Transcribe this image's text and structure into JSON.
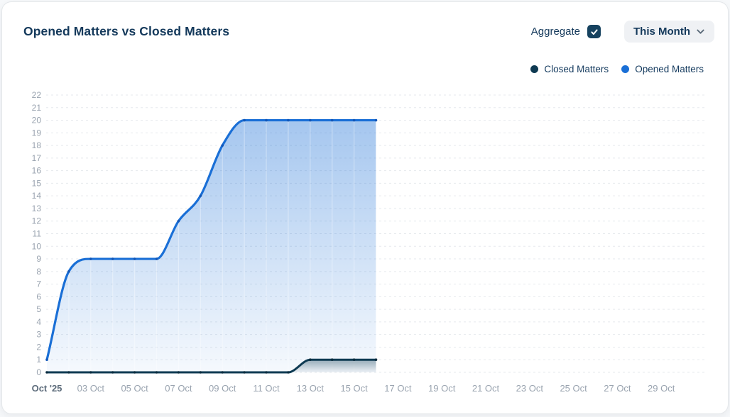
{
  "header": {
    "title": "Opened Matters vs Closed Matters",
    "aggregate_label": "Aggregate",
    "aggregate_checked": true,
    "period_selector": "This Month"
  },
  "legend": [
    {
      "label": "Closed Matters",
      "color": "#0E3A52"
    },
    {
      "label": "Opened Matters",
      "color": "#1A6FD6"
    }
  ],
  "colors": {
    "title_text": "#14395B",
    "opened_line": "#1A6FD6",
    "closed_line": "#0E3A52",
    "axis_tick_text": "#99A3AF",
    "first_x_tick_text": "#5D6C7B",
    "gridline": "#E6E9ED",
    "checkbox_bg": "#16425F",
    "period_button_bg": "#EFF1F4"
  },
  "chart_data": {
    "type": "area",
    "title": "Opened Matters vs Closed Matters",
    "x_unit": "day of October 2025",
    "days": [
      1,
      2,
      3,
      4,
      5,
      6,
      7,
      8,
      9,
      10,
      11,
      12,
      13,
      14,
      15,
      16
    ],
    "series": [
      {
        "name": "Closed Matters",
        "color": "#0E3A52",
        "values": [
          0,
          0,
          0,
          0,
          0,
          0,
          0,
          0,
          0,
          0,
          0,
          0,
          1,
          1,
          1,
          1
        ]
      },
      {
        "name": "Opened Matters",
        "color": "#1A6FD6",
        "values": [
          1,
          8,
          9,
          9,
          9,
          9,
          12,
          14,
          18,
          20,
          20,
          20,
          20,
          20,
          20,
          20
        ]
      }
    ],
    "x_tick_labels": [
      "Oct '25",
      "03 Oct",
      "05 Oct",
      "07 Oct",
      "09 Oct",
      "11 Oct",
      "13 Oct",
      "15 Oct",
      "17 Oct",
      "19 Oct",
      "21 Oct",
      "23 Oct",
      "25 Oct",
      "27 Oct",
      "29 Oct"
    ],
    "x_tick_days": [
      1,
      3,
      5,
      7,
      9,
      11,
      13,
      15,
      17,
      19,
      21,
      23,
      25,
      27,
      29
    ],
    "x_domain_days": [
      1,
      31
    ],
    "y_axis": {
      "min": 0,
      "max": 22,
      "tick_step": 1
    },
    "grid": "horizontal-dashed",
    "legend_position": "top-right",
    "curve": "monotone"
  }
}
